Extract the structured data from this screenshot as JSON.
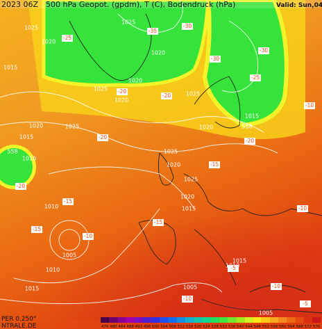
{
  "header": {
    "run": "2023 06Z",
    "title": "500 hPa Geopot. (gpdm), T (C), Bodendruck (hPa)",
    "valid": "Valid: Sun,04"
  },
  "pressure_labels": [
    "1025",
    "1025",
    "1020",
    "1015",
    "1020",
    "1025",
    "1020",
    "1020",
    "1025",
    "1020",
    "1025",
    "1015",
    "1010",
    "1020",
    "1015",
    "1025",
    "1020",
    "1025",
    "1020",
    "1015",
    "1010",
    "1005",
    "1010",
    "1015",
    "1005",
    "1015",
    "1010",
    "1005"
  ],
  "contour_labels": [
    "558",
    "558"
  ],
  "temperature_labels": [
    "-30",
    "-25",
    "-35",
    "-30",
    "-30",
    "-25",
    "-20",
    "-20",
    "-20",
    "-20",
    "-15",
    "-15",
    "-10",
    "-15",
    "-20",
    "-15",
    "-10",
    "-10",
    "-5",
    "-10",
    "-10",
    "-5"
  ],
  "colorbar": {
    "ticks": [
      476,
      480,
      484,
      488,
      492,
      496,
      500,
      504,
      508,
      512,
      516,
      520,
      524,
      528,
      532,
      536,
      540,
      544,
      548,
      552,
      556,
      560,
      564,
      568,
      572,
      576
    ]
  },
  "footer": {
    "resolution": "PER 0.250°",
    "source": "NTRALE.DE"
  }
}
